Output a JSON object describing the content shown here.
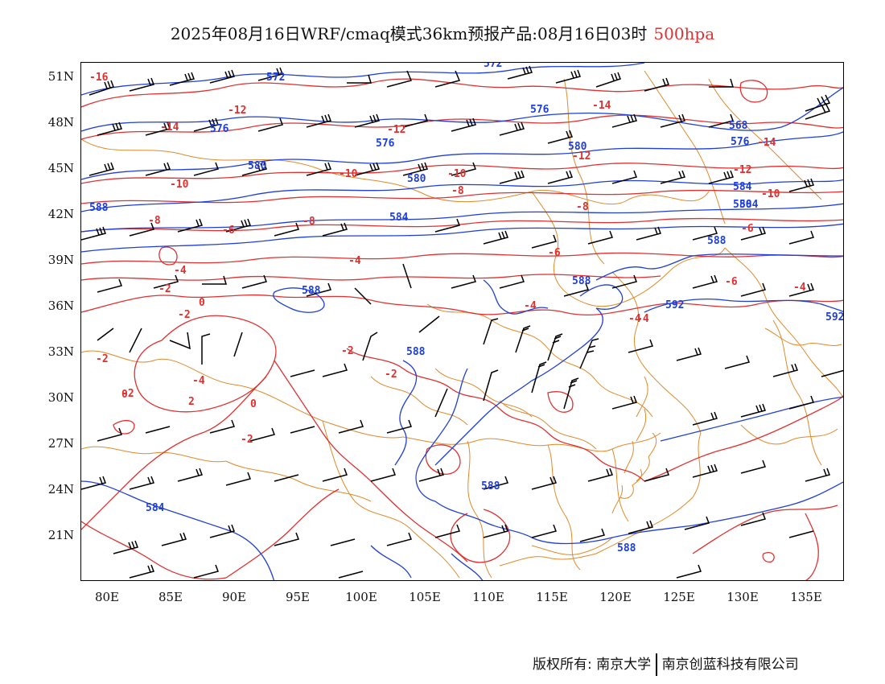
{
  "title": {
    "main": "2025年08月16日WRF/cmaq模式36km预报产品:08月16日03时",
    "level": "500hpa"
  },
  "axes": {
    "y_labels": [
      "51N",
      "48N",
      "45N",
      "42N",
      "39N",
      "36N",
      "33N",
      "30N",
      "27N",
      "24N",
      "21N"
    ],
    "x_labels": [
      "80E",
      "85E",
      "90E",
      "95E",
      "100E",
      "105E",
      "110E",
      "115E",
      "120E",
      "125E",
      "130E",
      "135E"
    ]
  },
  "contours": {
    "height_labels": [
      "572",
      "572",
      "576",
      "576",
      "576",
      "580",
      "580",
      "580",
      "568",
      "576",
      "584",
      "580",
      "584",
      "584",
      "588",
      "588",
      "588",
      "588",
      "592",
      "592",
      "588",
      "584",
      "588",
      "588"
    ],
    "temp_labels": [
      "-16",
      "-12",
      "-14",
      "-12",
      "-14",
      "-10",
      "-10",
      "-12",
      "-8",
      "-10",
      "-8",
      "-14",
      "-8",
      "-6",
      "-8",
      "-12",
      "-6",
      "-4",
      "-10",
      "-6",
      "-2",
      "-4",
      "0",
      "-4",
      "-2",
      "-2",
      "-4",
      "-2",
      "2",
      "0",
      "-2",
      "-4",
      "-2",
      "-4",
      "-4",
      "-2",
      "-6",
      "0"
    ]
  },
  "colors": {
    "height": "#1f3fd8",
    "temperature": "#e03030",
    "border": "#e08a2a",
    "wind": "#000000"
  },
  "footer": {
    "left": "版权所有: 南京大学",
    "right": "南京创蓝科技有限公司"
  }
}
